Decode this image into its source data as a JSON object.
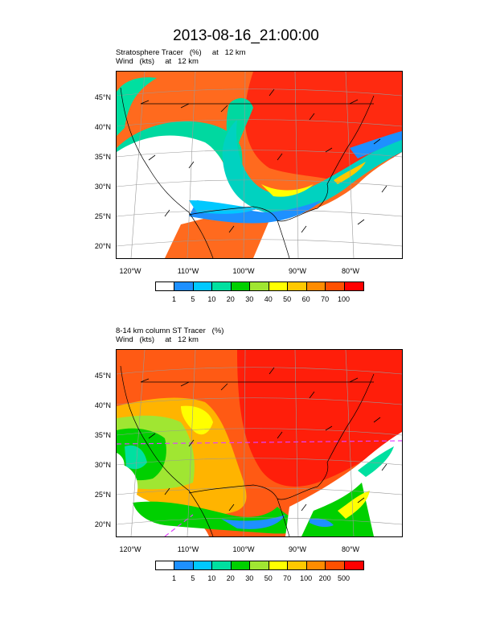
{
  "title": "2013-08-16_21:00:00",
  "panels": [
    {
      "subtitle_line1": "Stratosphere Tracer   (%)     at   12 km",
      "subtitle_line2": "Wind   (kts)     at   12 km",
      "lat_labels": [
        "45°N",
        "40°N",
        "35°N",
        "30°N",
        "25°N",
        "20°N"
      ],
      "lon_labels": [
        "120°W",
        "110°W",
        "100°W",
        "90°W",
        "80°W"
      ],
      "colorbar_labels": [
        "1",
        "5",
        "10",
        "20",
        "30",
        "40",
        "50",
        "60",
        "70",
        "100"
      ]
    },
    {
      "subtitle_line1": "8-14 km column ST Tracer   (%)",
      "subtitle_line2": "Wind   (kts)     at   12 km",
      "lat_labels": [
        "45°N",
        "40°N",
        "35°N",
        "30°N",
        "25°N",
        "20°N"
      ],
      "lon_labels": [
        "120°W",
        "110°W",
        "100°W",
        "90°W",
        "80°W"
      ],
      "colorbar_labels": [
        "1",
        "5",
        "10",
        "20",
        "30",
        "50",
        "70",
        "100",
        "200",
        "500"
      ]
    }
  ],
  "colorbar_colors": [
    "#ffffff",
    "#1e90ff",
    "#00c8ff",
    "#00e0a0",
    "#00d000",
    "#a0e632",
    "#ffff00",
    "#ffc800",
    "#ff8c00",
    "#ff5000",
    "#ff0000"
  ]
}
